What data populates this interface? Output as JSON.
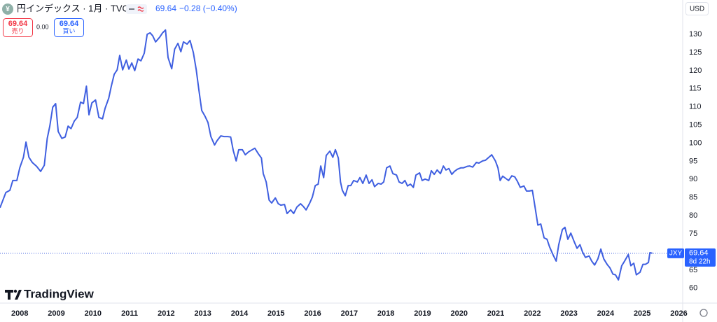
{
  "header": {
    "icon": "¥",
    "title": "円インデックス · 1月 · TVC",
    "last": "69.64",
    "change": "−0.28 (−0.40%)"
  },
  "trade": {
    "sell": {
      "price": "69.64",
      "label": "売り"
    },
    "spread": "0.00",
    "buy": {
      "price": "69.64",
      "label": "買い"
    }
  },
  "watermark": "TradingView",
  "chart_data": {
    "type": "line",
    "color": "#3f5fe0",
    "currency": "USD",
    "price_tag": {
      "symbol": "JXY",
      "countdown": "8d 22h"
    },
    "xlim": [
      2007.46,
      2026.01
    ],
    "xticks": [
      2008,
      2009,
      2010,
      2011,
      2012,
      2013,
      2014,
      2015,
      2016,
      2017,
      2018,
      2019,
      2020,
      2021,
      2022,
      2023,
      2024,
      2025,
      2026
    ],
    "ylim": [
      56.1,
      135.6
    ],
    "yticks": [
      60,
      65,
      70,
      75,
      80,
      85,
      90,
      95,
      100,
      105,
      110,
      115,
      120,
      125,
      130
    ],
    "grid": false,
    "x": [
      2007.46,
      2007.62,
      2007.73,
      2007.81,
      2007.92,
      2008.0,
      2008.1,
      2008.17,
      2008.25,
      2008.34,
      2008.46,
      2008.57,
      2008.67,
      2008.75,
      2008.82,
      2008.9,
      2008.98,
      2009.05,
      2009.15,
      2009.24,
      2009.32,
      2009.4,
      2009.49,
      2009.57,
      2009.66,
      2009.74,
      2009.82,
      2009.89,
      2009.97,
      2010.07,
      2010.16,
      2010.26,
      2010.33,
      2010.43,
      2010.5,
      2010.58,
      2010.66,
      2010.73,
      2010.81,
      2010.91,
      2010.98,
      2011.06,
      2011.14,
      2011.23,
      2011.31,
      2011.4,
      2011.48,
      2011.56,
      2011.63,
      2011.71,
      2011.82,
      2011.9,
      2011.98,
      2012.05,
      2012.15,
      2012.23,
      2012.32,
      2012.4,
      2012.47,
      2012.57,
      2012.65,
      2012.74,
      2012.82,
      2012.89,
      2012.97,
      2013.05,
      2013.14,
      2013.22,
      2013.32,
      2013.39,
      2013.49,
      2013.58,
      2013.68,
      2013.76,
      2013.83,
      2013.91,
      2013.98,
      2014.08,
      2014.16,
      2014.25,
      2014.35,
      2014.42,
      2014.52,
      2014.6,
      2014.65,
      2014.73,
      2014.81,
      2014.88,
      2014.98,
      2015.06,
      2015.13,
      2015.23,
      2015.3,
      2015.4,
      2015.48,
      2015.57,
      2015.67,
      2015.74,
      2015.82,
      2015.92,
      2015.99,
      2016.07,
      2016.15,
      2016.22,
      2016.3,
      2016.37,
      2016.47,
      2016.55,
      2016.62,
      2016.7,
      2016.76,
      2016.81,
      2016.89,
      2016.97,
      2017.04,
      2017.12,
      2017.22,
      2017.29,
      2017.37,
      2017.46,
      2017.54,
      2017.62,
      2017.69,
      2017.79,
      2017.87,
      2017.94,
      2018.02,
      2018.11,
      2018.19,
      2018.29,
      2018.36,
      2018.44,
      2018.52,
      2018.59,
      2018.67,
      2018.75,
      2018.82,
      2018.92,
      2018.99,
      2019.07,
      2019.17,
      2019.24,
      2019.32,
      2019.4,
      2019.49,
      2019.57,
      2019.64,
      2019.72,
      2019.8,
      2019.87,
      2019.95,
      2020.05,
      2020.12,
      2020.22,
      2020.29,
      2020.37,
      2020.47,
      2020.54,
      2020.64,
      2020.72,
      2020.81,
      2020.89,
      2020.99,
      2021.06,
      2021.12,
      2021.19,
      2021.27,
      2021.35,
      2021.44,
      2021.52,
      2021.59,
      2021.67,
      2021.77,
      2021.84,
      2021.92,
      2022.0,
      2022.07,
      2022.15,
      2022.23,
      2022.32,
      2022.4,
      2022.47,
      2022.57,
      2022.65,
      2022.72,
      2022.82,
      2022.89,
      2022.97,
      2023.05,
      2023.14,
      2023.22,
      2023.3,
      2023.37,
      2023.45,
      2023.55,
      2023.62,
      2023.7,
      2023.79,
      2023.87,
      2023.95,
      2024.04,
      2024.12,
      2024.2,
      2024.27,
      2024.35,
      2024.44,
      2024.52,
      2024.62,
      2024.69,
      2024.77,
      2024.84,
      2024.94,
      2025.02,
      2025.09,
      2025.17,
      2025.21,
      2025.28
    ],
    "values": [
      82.2,
      86.4,
      87.0,
      89.7,
      89.7,
      93.2,
      96.1,
      100.3,
      96.1,
      94.7,
      93.6,
      92.2,
      93.9,
      101.3,
      104.7,
      109.9,
      110.9,
      103.2,
      101.3,
      101.7,
      104.7,
      104.0,
      106.1,
      107.1,
      111.3,
      110.9,
      115.7,
      107.8,
      111.1,
      111.9,
      107.1,
      106.7,
      109.6,
      112.4,
      115.7,
      119.0,
      120.2,
      124.2,
      120.2,
      122.9,
      120.4,
      122.1,
      120.0,
      123.2,
      122.7,
      124.8,
      130.0,
      130.4,
      129.6,
      127.9,
      129.2,
      130.4,
      131.2,
      123.6,
      120.5,
      125.9,
      127.5,
      125.2,
      127.9,
      127.3,
      128.3,
      125.0,
      120.2,
      114.8,
      109.0,
      107.6,
      105.7,
      101.8,
      99.5,
      100.7,
      102.0,
      101.8,
      101.8,
      101.7,
      98.0,
      95.1,
      98.2,
      98.2,
      96.8,
      97.6,
      98.2,
      98.6,
      97.0,
      95.9,
      91.6,
      89.3,
      84.3,
      83.5,
      84.9,
      83.3,
      82.9,
      83.1,
      80.6,
      81.6,
      80.6,
      82.4,
      83.3,
      82.6,
      81.6,
      83.5,
      85.1,
      88.3,
      88.7,
      93.7,
      90.5,
      96.6,
      97.8,
      96.1,
      98.2,
      95.9,
      89.3,
      87.0,
      85.5,
      88.3,
      88.3,
      89.7,
      89.3,
      90.5,
      88.9,
      91.2,
      88.9,
      89.9,
      88.0,
      88.9,
      88.7,
      89.3,
      93.2,
      93.7,
      91.6,
      91.2,
      89.3,
      88.9,
      89.7,
      88.2,
      88.7,
      87.8,
      91.2,
      91.8,
      89.7,
      90.1,
      89.7,
      92.4,
      91.4,
      92.6,
      91.6,
      93.7,
      92.6,
      93.0,
      91.4,
      92.2,
      92.8,
      93.2,
      93.2,
      93.6,
      93.7,
      93.4,
      94.7,
      94.5,
      95.1,
      95.3,
      96.1,
      96.8,
      95.1,
      93.2,
      89.7,
      90.9,
      90.3,
      89.7,
      91.0,
      90.7,
      89.5,
      87.8,
      88.2,
      86.8,
      86.8,
      87.0,
      82.6,
      77.4,
      77.7,
      73.9,
      73.5,
      71.4,
      69.1,
      67.5,
      72.0,
      76.2,
      76.8,
      73.5,
      75.2,
      72.9,
      71.0,
      72.0,
      70.0,
      68.5,
      68.9,
      67.5,
      66.4,
      68.1,
      70.8,
      68.1,
      66.6,
      65.6,
      63.9,
      63.7,
      62.3,
      66.2,
      67.5,
      69.3,
      66.2,
      66.9,
      63.7,
      64.4,
      66.6,
      66.6,
      67.1,
      69.8,
      69.64
    ]
  }
}
